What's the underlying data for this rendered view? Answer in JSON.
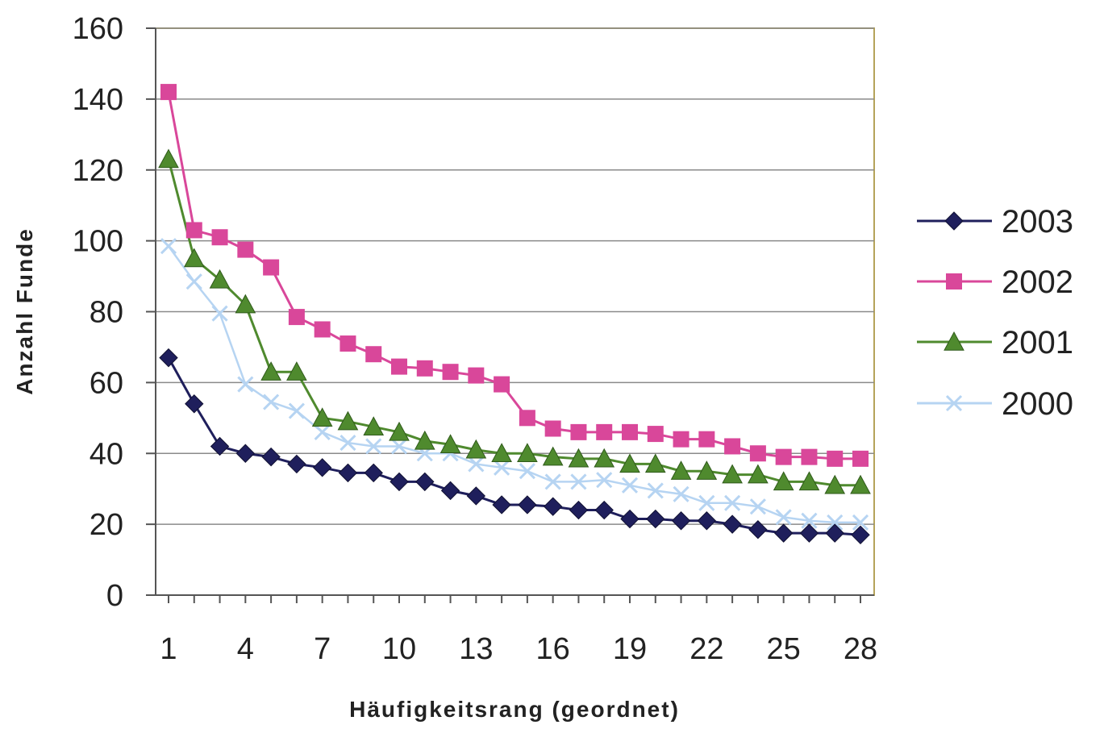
{
  "chart_data": {
    "type": "line",
    "xlabel": "Häufigkeitsrang (geordnet)",
    "ylabel": "Anzahl Funde",
    "ylim": [
      0,
      160
    ],
    "xlim": [
      1,
      28
    ],
    "yticks": [
      0,
      20,
      40,
      60,
      80,
      100,
      120,
      140,
      160
    ],
    "xtick_labels": [
      "1",
      "4",
      "7",
      "10",
      "13",
      "16",
      "19",
      "22",
      "25",
      "28"
    ],
    "x": [
      1,
      2,
      3,
      4,
      5,
      6,
      7,
      8,
      9,
      10,
      11,
      12,
      13,
      14,
      15,
      16,
      17,
      18,
      19,
      20,
      21,
      22,
      23,
      24,
      25,
      26,
      27,
      28
    ],
    "grid": "horizontal",
    "legend_position": "right",
    "series": [
      {
        "name": "2003",
        "color": "#1f1f5c",
        "marker": "diamond",
        "values": [
          67,
          54,
          42,
          40,
          39,
          37,
          36,
          34.5,
          34.5,
          32,
          32,
          29.5,
          28,
          25.5,
          25.5,
          25,
          24,
          24,
          21.5,
          21.5,
          21,
          21,
          20,
          18.5,
          17.5,
          17.5,
          17.5,
          17
        ]
      },
      {
        "name": "2002",
        "color": "#d9479a",
        "marker": "square",
        "values": [
          142,
          103,
          101,
          97.5,
          92.5,
          78.5,
          75,
          71,
          68,
          64.5,
          64,
          63,
          62,
          59.5,
          50,
          47,
          46,
          46,
          46,
          45.5,
          44,
          44,
          42,
          40,
          39,
          39,
          38.5,
          38.5
        ]
      },
      {
        "name": "2001",
        "color": "#4f8a2e",
        "marker": "triangle",
        "values": [
          123,
          95,
          89,
          82,
          63,
          63,
          50,
          49,
          47.5,
          46,
          43.5,
          42.5,
          41,
          40,
          40,
          39,
          38.5,
          38.5,
          37,
          37,
          35,
          35,
          34,
          34,
          32,
          32,
          31,
          31
        ]
      },
      {
        "name": "2000",
        "color": "#b6d4f2",
        "marker": "x",
        "values": [
          98.5,
          88.5,
          79.5,
          59.5,
          54.5,
          52,
          46,
          43,
          42,
          42,
          40,
          40,
          37,
          36,
          35,
          32,
          32,
          32.5,
          31,
          29.5,
          28.5,
          26,
          26,
          25,
          22,
          21,
          20.5,
          20.5
        ]
      }
    ]
  }
}
